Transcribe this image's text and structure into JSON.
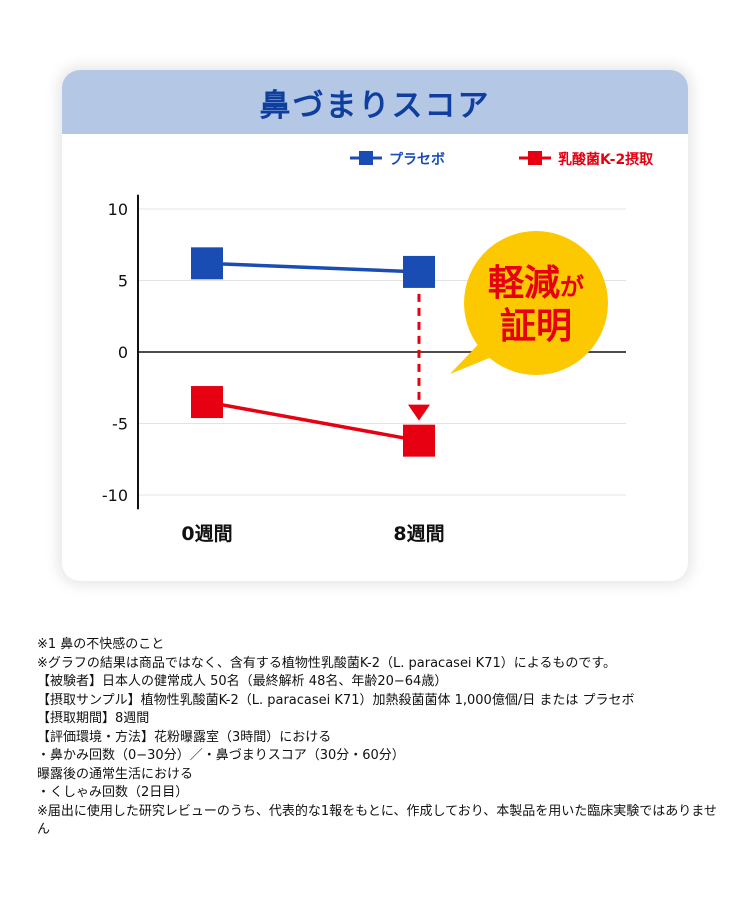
{
  "title": "鼻づまりスコア",
  "callout": {
    "line1_big": "軽減",
    "line1_small": "が",
    "line2": "証明"
  },
  "chart_data": {
    "type": "line",
    "title": "鼻づまりスコア",
    "categories": [
      "0週間",
      "8週間"
    ],
    "series": [
      {
        "name": "プラセボ",
        "values": [
          6.2,
          5.6
        ],
        "color": "#1a4db3"
      },
      {
        "name": "乳酸菌K-2摂取",
        "values": [
          -3.5,
          -6.2
        ],
        "color": "#e60012"
      }
    ],
    "yticks": [
      10,
      5,
      0,
      -5,
      -10
    ],
    "ylim": [
      -11,
      11
    ],
    "grid": true,
    "legend": "top-right"
  },
  "notes": [
    "※1 鼻の不快感のこと",
    "※グラフの結果は商品ではなく、含有する植物性乳酸菌K-2（L. paracasei K71）によるものです。",
    "【被験者】日本人の健常成人 50名（最終解析 48名、年齢20−64歳）",
    "【摂取サンプル】植物性乳酸菌K-2（L. paracasei K71）加熱殺菌菌体 1,000億個/日 または プラセボ",
    "【摂取期間】8週間",
    "【評価環境・方法】花粉曝露室（3時間）における",
    "・鼻かみ回数（0−30分）／・鼻づまりスコア（30分・60分）",
    "曝露後の通常生活における",
    "・くしゃみ回数（2日目）",
    "※届出に使用した研究レビューのうち、代表的な1報をもとに、作成しており、本製品を用いた臨床実験ではありません"
  ]
}
